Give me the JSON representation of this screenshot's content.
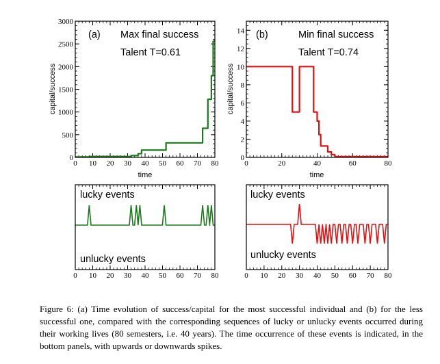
{
  "chart_data": [
    {
      "type": "line",
      "panel_label": "(a)",
      "annotation_1": "Max final success",
      "annotation_2": "Talent T=0.61",
      "xlabel": "time",
      "ylabel": "capital/success",
      "xlim": [
        0,
        80
      ],
      "ylim": [
        0,
        3000
      ],
      "xticks": [
        "0",
        "10",
        "20",
        "30",
        "40",
        "50",
        "60",
        "70",
        "80"
      ],
      "yticks": [
        "0",
        "500",
        "1000",
        "1500",
        "2000",
        "2500",
        "3000"
      ],
      "color": "#1a7a1a",
      "x": [
        0,
        8,
        8,
        32,
        32,
        36,
        36,
        38,
        38,
        52,
        52,
        73,
        73,
        76,
        76,
        78,
        78,
        79,
        79,
        80
      ],
      "y": [
        10,
        10,
        20,
        20,
        40,
        40,
        80,
        80,
        160,
        160,
        320,
        320,
        640,
        640,
        1280,
        1280,
        1800,
        1800,
        2560,
        2560
      ]
    },
    {
      "type": "line",
      "panel_label": "(b)",
      "annotation_1": "Min final success",
      "annotation_2": "Talent T=0.74",
      "xlabel": "time",
      "ylabel": "capital/success",
      "xlim": [
        0,
        80
      ],
      "ylim": [
        0,
        15
      ],
      "xticks": [
        "0",
        "20",
        "40",
        "60",
        "80"
      ],
      "yticks": [
        "0",
        "2",
        "4",
        "6",
        "8",
        "10",
        "12",
        "14"
      ],
      "color": "#e01010",
      "x": [
        0,
        26,
        26,
        30,
        30,
        38,
        38,
        40,
        40,
        41,
        41,
        42,
        42,
        46,
        46,
        48,
        48,
        50,
        50,
        80
      ],
      "y": [
        10,
        10,
        5,
        5,
        10,
        10,
        5,
        5,
        4,
        4,
        2.5,
        2.5,
        1.25,
        1.25,
        0.6,
        0.6,
        0.3,
        0.3,
        0.08,
        0.08
      ]
    },
    {
      "type": "events",
      "upper_label": "lucky events",
      "lower_label": "unlucky events",
      "xlim": [
        0,
        80
      ],
      "xticks": [
        "0",
        "10",
        "20",
        "30",
        "40",
        "50",
        "60",
        "70",
        "80"
      ],
      "color": "#1a7a1a",
      "lucky": [
        8,
        32,
        35,
        37,
        51,
        73,
        76,
        78
      ],
      "unlucky": []
    },
    {
      "type": "events",
      "upper_label": "lucky events",
      "lower_label": "unlucky events",
      "xlim": [
        0,
        80
      ],
      "xticks": [
        "0",
        "10",
        "20",
        "30",
        "40",
        "50",
        "60",
        "70",
        "80"
      ],
      "color": "#e01010",
      "lucky": [
        30
      ],
      "unlucky": [
        26,
        40,
        42,
        44,
        46,
        48,
        51,
        54,
        57,
        60,
        63,
        67,
        70,
        74,
        78
      ]
    }
  ],
  "caption": {
    "label": "Figure 6:",
    "text": "(a) Time evolution of success/capital for the most successful individual and (b) for the less successful one, compared with the corresponding sequences of lucky or unlucky events occurred during their working lives (80 semesters, i.e. 40 years). The time occurrence of these events is indicated, in the bottom panels, with upwards or downwards spikes."
  }
}
